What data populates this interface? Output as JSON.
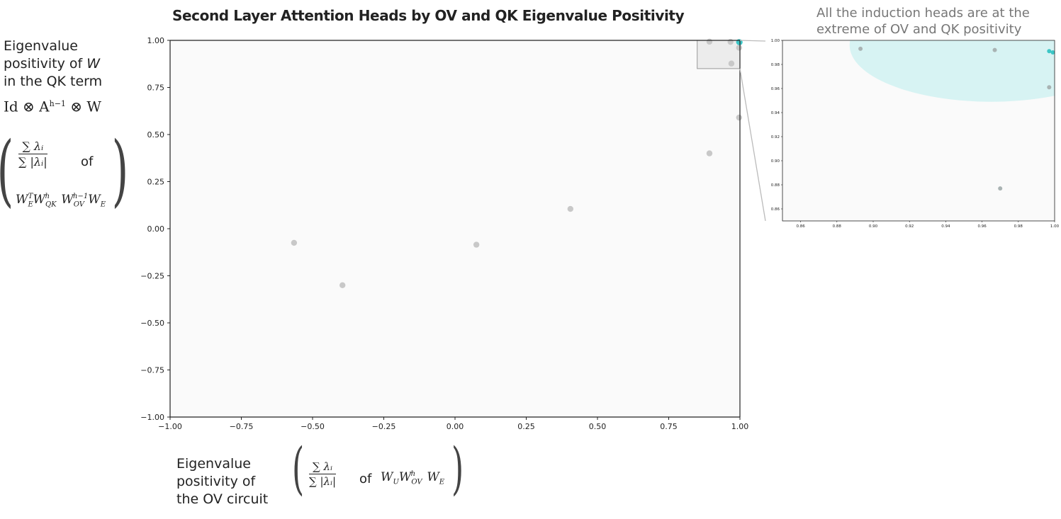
{
  "title": "Second Layer Attention Heads by OV and QK Eigenvalue Positivity",
  "annotation": "All the induction heads are at the extreme of OV and QK positivity",
  "y_axis_label": {
    "line1": "Eigenvalue",
    "line2_pre": "positivity of ",
    "line2_var": "W",
    "line3": "in the QK term",
    "term": "Id ⊗ A",
    "term_sup": "h−1",
    "term_post": " ⊗ W",
    "frac_num": "∑ λᵢ",
    "frac_den": "∑ |λᵢ|",
    "of": "of",
    "matrix": "WᴱᵀWQKʰWOVʰ⁻¹Wᴱ"
  },
  "x_axis_label": {
    "line1": "Eigenvalue",
    "line2": "positivity of",
    "line3": "the OV circuit",
    "frac_num": "∑ λᵢ",
    "frac_den": "∑ |λᵢ|",
    "of": "of",
    "matrix": "W_U W_OV^h W_E"
  },
  "colors": {
    "grey_point": "#c8c8c8",
    "induction_point": "#3cc6c6",
    "highlight_fill": "#d7f3f3",
    "plot_bg": "#fafafa",
    "annotation_text": "#777777"
  },
  "chart_data": [
    {
      "type": "scatter",
      "panel": "main",
      "title": "Second Layer Attention Heads by OV and QK Eigenvalue Positivity",
      "xlim": [
        -1.0,
        1.0
      ],
      "ylim": [
        -1.0,
        1.0
      ],
      "x_ticks": [
        -1.0,
        -0.75,
        -0.5,
        -0.25,
        0.0,
        0.25,
        0.5,
        0.75,
        1.0
      ],
      "y_ticks": [
        -1.0,
        -0.75,
        -0.5,
        -0.25,
        0.0,
        0.25,
        0.5,
        0.75,
        1.0
      ],
      "x_tick_labels": [
        "−1.00",
        "−0.75",
        "−0.50",
        "−0.25",
        "0.00",
        "0.25",
        "0.50",
        "0.75",
        "1.00"
      ],
      "y_tick_labels": [
        "−1.00",
        "−0.75",
        "−0.50",
        "−0.25",
        "0.00",
        "0.25",
        "0.50",
        "0.75",
        "1.00"
      ],
      "grid": false,
      "series": [
        {
          "kind": "other",
          "points": [
            {
              "x": -0.565,
              "y": -0.075
            },
            {
              "x": -0.395,
              "y": -0.3
            },
            {
              "x": 0.075,
              "y": -0.085
            },
            {
              "x": 0.405,
              "y": 0.105
            },
            {
              "x": 0.893,
              "y": 0.4
            },
            {
              "x": 0.997,
              "y": 0.59
            },
            {
              "x": 0.893,
              "y": 0.993
            },
            {
              "x": 0.967,
              "y": 0.992
            },
            {
              "x": 0.97,
              "y": 0.877
            },
            {
              "x": 0.997,
              "y": 0.961
            }
          ]
        },
        {
          "kind": "induction",
          "points": [
            {
              "x": 0.997,
              "y": 0.991
            },
            {
              "x": 0.999,
              "y": 0.99
            }
          ]
        }
      ],
      "zoom_box": {
        "xlim": [
          0.85,
          1.0
        ],
        "ylim": [
          0.85,
          1.0
        ]
      }
    },
    {
      "type": "scatter",
      "panel": "inset",
      "xlim": [
        0.85,
        1.0
      ],
      "ylim": [
        0.85,
        1.0
      ],
      "x_ticks": [
        0.86,
        0.88,
        0.9,
        0.92,
        0.94,
        0.96,
        0.98,
        1.0
      ],
      "y_ticks": [
        0.86,
        0.88,
        0.9,
        0.92,
        0.94,
        0.96,
        0.98,
        1.0
      ],
      "x_tick_labels": [
        "0.86",
        "0.88",
        "0.90",
        "0.92",
        "0.94",
        "0.96",
        "0.98",
        "1.00"
      ],
      "y_tick_labels": [
        "0.86",
        "0.88",
        "0.90",
        "0.92",
        "0.94",
        "0.96",
        "0.98",
        "1.00"
      ],
      "highlight_region": {
        "cx": 0.965,
        "cy": 0.996,
        "rx": 0.078,
        "ry": 0.047
      },
      "series": [
        {
          "kind": "other",
          "points": [
            {
              "x": 0.893,
              "y": 0.993
            },
            {
              "x": 0.967,
              "y": 0.992
            },
            {
              "x": 0.97,
              "y": 0.877
            },
            {
              "x": 0.997,
              "y": 0.961
            }
          ]
        },
        {
          "kind": "induction",
          "points": [
            {
              "x": 0.997,
              "y": 0.991
            },
            {
              "x": 0.999,
              "y": 0.99
            }
          ]
        }
      ]
    }
  ]
}
